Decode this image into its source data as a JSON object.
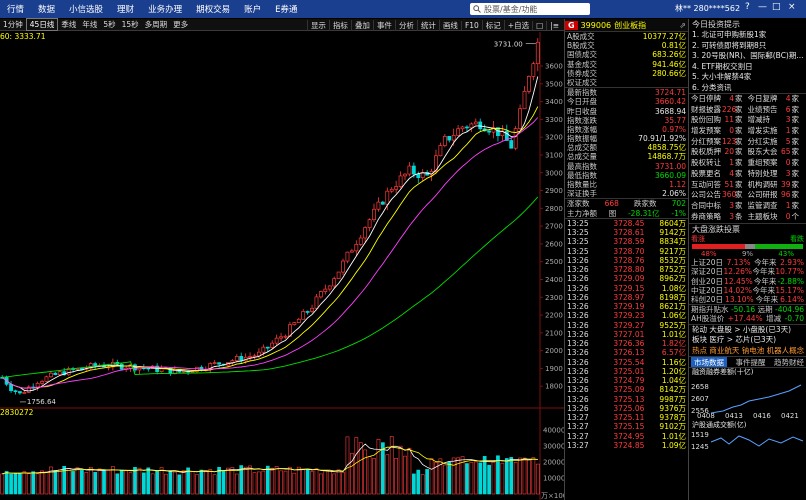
{
  "topbar": {
    "menu": [
      "行情",
      "数据",
      "小信选股",
      "理财",
      "业务办理",
      "期权交易",
      "账户",
      "E券通"
    ],
    "search_placeholder": "股票/基金/功能",
    "user": "林** 280****562",
    "window_controls": [
      "?",
      "—",
      "□",
      "×"
    ]
  },
  "toolbar": {
    "left": [
      "1分钟",
      "45日线",
      "季线",
      "年线",
      "5秒",
      "15秒",
      "多周期",
      "更多"
    ],
    "selected": "45日线",
    "right": [
      "显示",
      "指标",
      "叠加",
      "事件",
      "分析",
      "统计",
      "画线",
      "F10",
      "标记",
      "+自选",
      "□",
      "|≡"
    ]
  },
  "chart": {
    "ma_legend": "60: 3333.71",
    "price_ticks": [
      "3600",
      "3500",
      "3400",
      "3300",
      "3200",
      "3100",
      "3000",
      "2900",
      "2800",
      "2700",
      "2600",
      "2500",
      "2400",
      "2300",
      "2200",
      "2100",
      "2000",
      "1900",
      "1800"
    ],
    "high_label": "3731.00",
    "low_label": "1756.64",
    "volume_legend": "2830272",
    "vol_ticks": [
      "40000",
      "30000",
      "20000",
      "10000"
    ],
    "vol_unit": "万×100",
    "colors": {
      "up": "#ff3b3b",
      "down": "#00d8d8",
      "ma5": "#ffffff",
      "ma10": "#ffff00",
      "ma20": "#ff40ff",
      "ma60": "#00e000"
    }
  },
  "quote": {
    "code": "399006",
    "name": "创业板指",
    "badge": "G",
    "rows": [
      {
        "l": "A股成交",
        "v": "10377.27亿",
        "c": "yel"
      },
      {
        "l": "B股成交",
        "v": "0.81亿",
        "c": "yel"
      },
      {
        "l": "国债成交",
        "v": "683.26亿",
        "c": "yel"
      },
      {
        "l": "基金成交",
        "v": "941.46亿",
        "c": "yel"
      },
      {
        "l": "债券成交",
        "v": "280.66亿",
        "c": "yel"
      },
      {
        "l": "权证成交",
        "v": "",
        "c": "yel"
      }
    ],
    "rows2": [
      {
        "l": "最新指数",
        "v": "3724.71",
        "c": "red"
      },
      {
        "l": "今日开盘",
        "v": "3660.42",
        "c": "red"
      },
      {
        "l": "昨日收盘",
        "v": "3688.94",
        "c": "wht"
      },
      {
        "l": "指数涨跌",
        "v": "35.77",
        "c": "red"
      },
      {
        "l": "指数涨幅",
        "v": "0.97%",
        "c": "red"
      },
      {
        "l": "指数振幅",
        "v": "70.91/1.92%",
        "c": "wht"
      },
      {
        "l": "总成交额",
        "v": "4858.75亿",
        "c": "yel"
      },
      {
        "l": "总成交量",
        "v": "14868.7万",
        "c": "yel"
      },
      {
        "l": "最高指数",
        "v": "3731.00",
        "c": "red"
      },
      {
        "l": "最低指数",
        "v": "3660.09",
        "c": "grn"
      },
      {
        "l": "指数量比",
        "v": "1.12",
        "c": "red"
      },
      {
        "l": "深证换手",
        "v": "2.06%",
        "c": "wht"
      }
    ],
    "updown": {
      "rise_label": "涨家数",
      "rise": "668",
      "fall_label": "跌家数",
      "fall": "702"
    },
    "mainflow": {
      "label": "主力净额",
      "sub": "图",
      "value": "-28.31亿",
      "pct": "-1%"
    }
  },
  "ticks": [
    [
      "13:25",
      "3728.45",
      "8604万",
      "yel"
    ],
    [
      "13:25",
      "3728.61",
      "9142万",
      "yel"
    ],
    [
      "13:25",
      "3728.59",
      "8834万",
      "yel"
    ],
    [
      "13:25",
      "3728.70",
      "9217万",
      "yel"
    ],
    [
      "13:26",
      "3728.76",
      "8532万",
      "yel"
    ],
    [
      "13:26",
      "3728.80",
      "8752万",
      "yel"
    ],
    [
      "13:26",
      "3729.09",
      "8962万",
      "yel"
    ],
    [
      "13:26",
      "3729.15",
      "1.08亿",
      "yel"
    ],
    [
      "13:26",
      "3728.97",
      "8198万",
      "yel"
    ],
    [
      "13:26",
      "3729.19",
      "8621万",
      "yel"
    ],
    [
      "13:26",
      "3729.23",
      "1.06亿",
      "yel"
    ],
    [
      "13:26",
      "3729.27",
      "9525万",
      "yel"
    ],
    [
      "13:26",
      "3727.01",
      "1.01亿",
      "yel"
    ],
    [
      "13:26",
      "3726.36",
      "1.82亿",
      "red"
    ],
    [
      "13:26",
      "3726.13",
      "6.57亿",
      "red"
    ],
    [
      "13:26",
      "3725.54",
      "1.16亿",
      "yel"
    ],
    [
      "13:26",
      "3725.01",
      "1.20亿",
      "yel"
    ],
    [
      "13:26",
      "3724.79",
      "1.04亿",
      "yel"
    ],
    [
      "13:26",
      "3725.09",
      "8142万",
      "yel"
    ],
    [
      "13:26",
      "3725.13",
      "9987万",
      "yel"
    ],
    [
      "13:26",
      "3725.06",
      "9376万",
      "yel"
    ],
    [
      "13:27",
      "3725.11",
      "9378万",
      "yel"
    ],
    [
      "13:27",
      "3725.15",
      "9102万",
      "yel"
    ],
    [
      "13:27",
      "3724.95",
      "1.01亿",
      "yel"
    ],
    [
      "13:27",
      "3724.85",
      "1.09亿",
      "yel"
    ]
  ],
  "news": {
    "title": "今日投资提示",
    "items": [
      "1. 北证可申购新股1家",
      "2. 可转债即将到期8只",
      "3. 20号股(NR)、国际郵(BC)期...",
      "4. ETF期权交割日",
      "5. 大小非解禁4家",
      "6. 分类资讯"
    ]
  },
  "stats": [
    [
      [
        "今日停牌",
        "4",
        "家"
      ],
      [
        "今日复牌",
        "4",
        "家"
      ]
    ],
    [
      [
        "财报披露",
        "226",
        "家"
      ],
      [
        "业绩预告",
        "6",
        "家"
      ]
    ],
    [
      [
        "股份回购",
        "11",
        "家"
      ],
      [
        "增减持",
        "3",
        "家"
      ]
    ],
    [
      [
        "增发预案",
        "0",
        "家"
      ],
      [
        "增发实施",
        "1",
        "家"
      ]
    ],
    [
      [
        "分红预案",
        "123",
        "家"
      ],
      [
        "分红实施",
        "5",
        "家"
      ]
    ],
    [
      [
        "股权质押",
        "20",
        "家"
      ],
      [
        "股东大会",
        "65",
        "家"
      ]
    ],
    [
      [
        "股权转让",
        "1",
        "家"
      ],
      [
        "重组预案",
        "0",
        "家"
      ]
    ],
    [
      [
        "股票更名",
        "4",
        "家"
      ],
      [
        "特别处理",
        "3",
        "家"
      ]
    ],
    [
      [
        "互动问答",
        "51",
        "家"
      ],
      [
        "机构调研",
        "39",
        "家"
      ]
    ],
    [
      [
        "公司公告",
        "360",
        "家"
      ],
      [
        "公司研报",
        "96",
        "家"
      ]
    ],
    [
      [
        "合同中标",
        "3",
        "家"
      ],
      [
        "监管调查",
        "1",
        "家"
      ]
    ],
    [
      [
        "券商策略",
        "3",
        "条"
      ],
      [
        "主题板块",
        "0",
        "个"
      ]
    ]
  ],
  "breadth": {
    "title": "大盘涨跌投票",
    "left_label": "看涨",
    "right_label": "看跌",
    "pcts": [
      "48%",
      "9%",
      "43%"
    ],
    "rise_frac": 0.48,
    "flat_frac": 0.09,
    "fall_frac": 0.43,
    "rows": [
      {
        "l": "上证20日",
        "a": "7.13%",
        "b": "今年来",
        "c": "2.93%",
        "ac": "red",
        "cc": "red"
      },
      {
        "l": "深证20日",
        "a": "12.26%",
        "b": "今年来",
        "c": "10.77%",
        "ac": "red",
        "cc": "red"
      },
      {
        "l": "创业20日",
        "a": "12.45%",
        "b": "今年来",
        "c": "-2.88%",
        "ac": "red",
        "cc": "grn"
      },
      {
        "l": "中证20日",
        "a": "14.02%",
        "b": "今年来",
        "c": "15.17%",
        "ac": "red",
        "cc": "red"
      },
      {
        "l": "科创20日",
        "a": "13.10%",
        "b": "今年来",
        "c": "6.14%",
        "ac": "red",
        "cc": "red"
      }
    ],
    "flow1": {
      "l": "期指升贴水",
      "a": "-50.16",
      "b": "远期",
      "c": "-404.96"
    },
    "flow2": {
      "l": "AH股溢价",
      "a": "+17.44%",
      "b": "增减",
      "c": "-0.70"
    },
    "rotate1": "轮动 大盘股 > 小盘股(已3天)",
    "rotate2": "板块 医疗 > 芯片(已3天)",
    "hot": "热点 商业航天 钠电池 机器人概念"
  },
  "tabs": [
    "市场数据",
    "事件提醒",
    "趋势财经"
  ],
  "mini1": {
    "title": "融资融券差额(十亿)",
    "v1": "2658",
    "v2": "2607",
    "v3": "2556",
    "x": [
      "0408",
      "0413",
      "0416",
      "0421"
    ]
  },
  "mini2": {
    "title": "沪股通成交额(亿)",
    "v1": "1519",
    "v2": "1245"
  }
}
